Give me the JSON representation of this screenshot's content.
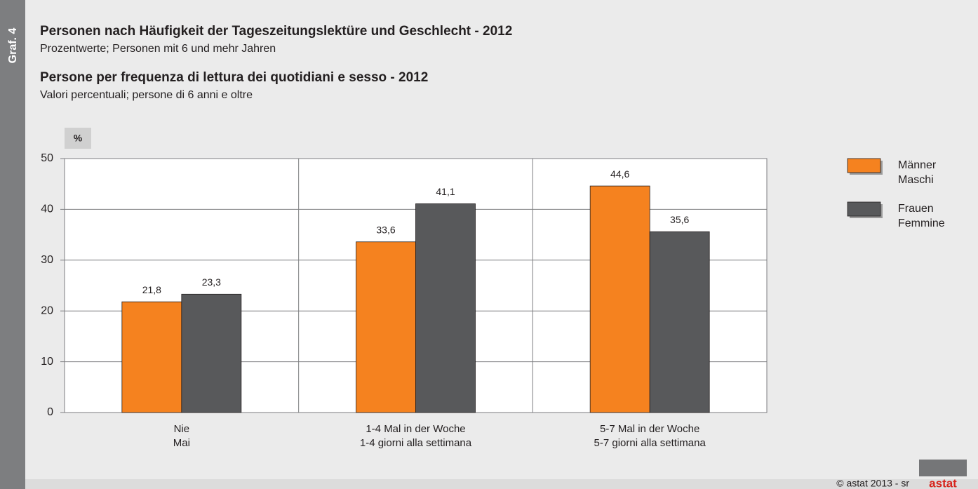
{
  "label": "Graf. 4",
  "copyright": "© astat 2013 - sr",
  "logo": "astat",
  "chart_data": {
    "type": "bar",
    "title": "Personen nach Häufigkeit der Tageszeitungslektüre und Geschlecht - 2012",
    "subtitle": "Prozentwerte; Personen mit 6 und mehr Jahren",
    "title2": "Persone per frequenza di lettura dei quotidiani e sesso - 2012",
    "subtitle2": "Valori percentuali; persone di 6 anni e oltre",
    "y_label": "%",
    "categories": [
      [
        "Nie",
        "Mai"
      ],
      [
        "1-4 Mal in der Woche",
        "1-4 giorni alla settimana"
      ],
      [
        "5-7 Mal in der Woche",
        "5-7 giorni alla settimana"
      ]
    ],
    "series": [
      {
        "name": [
          "Männer",
          "Maschi"
        ],
        "color": "#f5821f",
        "values": [
          21.8,
          33.6,
          44.6
        ],
        "value_labels": [
          "21,8",
          "33,6",
          "44,6"
        ]
      },
      {
        "name": [
          "Frauen",
          "Femmine"
        ],
        "color": "#58595b",
        "values": [
          23.3,
          41.1,
          35.6
        ],
        "value_labels": [
          "23,3",
          "41,1",
          "35,6"
        ]
      }
    ],
    "ylim": [
      0,
      50
    ],
    "yticks": [
      0,
      10,
      20,
      30,
      40,
      50
    ],
    "grid": true,
    "legend": "right"
  }
}
